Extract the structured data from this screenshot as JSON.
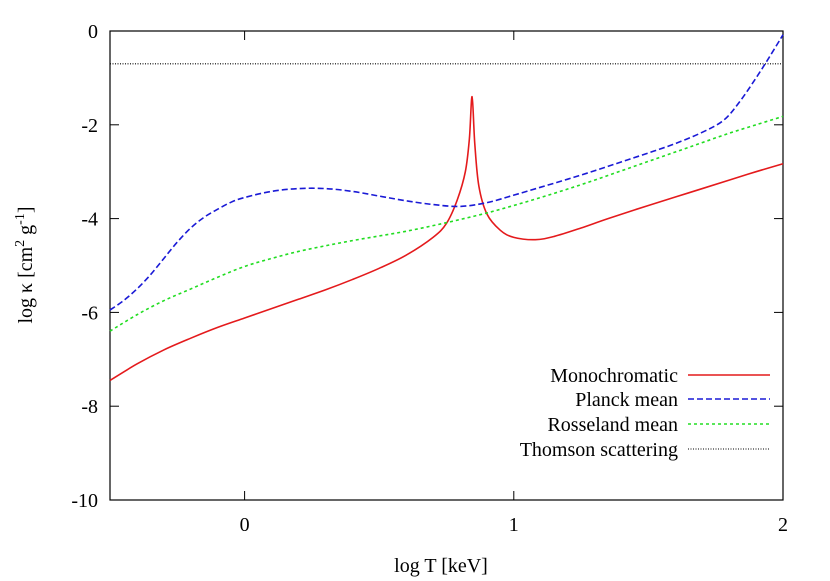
{
  "chart_data": {
    "type": "line",
    "xlabel": "log T [keV]",
    "ylabel": {
      "base": "log κ [cm",
      "sup1": "2",
      "mid": " g",
      "sup2": "-1",
      "end": "]"
    },
    "xlim": [
      -0.5,
      2
    ],
    "ylim": [
      -10,
      0
    ],
    "xticks": [
      0,
      1,
      2
    ],
    "yticks": [
      0,
      -2,
      -4,
      -6,
      -8,
      -10
    ],
    "xtick_labels": [
      "0",
      "1",
      "2"
    ],
    "ytick_labels": [
      "0",
      "-2",
      "-4",
      "-6",
      "-8",
      "-10"
    ],
    "grid": false,
    "legend_position": "bottom-right",
    "series": [
      {
        "name": "Monochromatic",
        "color": "#e41a1c",
        "dash": "solid",
        "points": [
          [
            -0.5,
            -7.45
          ],
          [
            -0.4,
            -7.1
          ],
          [
            -0.3,
            -6.8
          ],
          [
            -0.2,
            -6.55
          ],
          [
            -0.1,
            -6.32
          ],
          [
            0,
            -6.12
          ],
          [
            0.1,
            -5.92
          ],
          [
            0.2,
            -5.72
          ],
          [
            0.3,
            -5.52
          ],
          [
            0.4,
            -5.3
          ],
          [
            0.5,
            -5.06
          ],
          [
            0.6,
            -4.78
          ],
          [
            0.7,
            -4.4
          ],
          [
            0.75,
            -4.1
          ],
          [
            0.79,
            -3.6
          ],
          [
            0.82,
            -3.0
          ],
          [
            0.835,
            -2.3
          ],
          [
            0.845,
            -1.4
          ],
          [
            0.855,
            -2.4
          ],
          [
            0.87,
            -3.3
          ],
          [
            0.9,
            -3.9
          ],
          [
            0.95,
            -4.25
          ],
          [
            1.0,
            -4.4
          ],
          [
            1.08,
            -4.45
          ],
          [
            1.15,
            -4.38
          ],
          [
            1.25,
            -4.2
          ],
          [
            1.35,
            -4.0
          ],
          [
            1.5,
            -3.72
          ],
          [
            1.65,
            -3.45
          ],
          [
            1.8,
            -3.18
          ],
          [
            1.9,
            -3.0
          ],
          [
            2.0,
            -2.83
          ]
        ]
      },
      {
        "name": "Planck mean",
        "color": "#1a1ad6",
        "dash": "dashed",
        "points": [
          [
            -0.5,
            -5.95
          ],
          [
            -0.45,
            -5.75
          ],
          [
            -0.4,
            -5.5
          ],
          [
            -0.35,
            -5.2
          ],
          [
            -0.3,
            -4.85
          ],
          [
            -0.25,
            -4.5
          ],
          [
            -0.2,
            -4.2
          ],
          [
            -0.15,
            -3.97
          ],
          [
            -0.1,
            -3.8
          ],
          [
            -0.05,
            -3.65
          ],
          [
            0,
            -3.55
          ],
          [
            0.1,
            -3.42
          ],
          [
            0.2,
            -3.36
          ],
          [
            0.3,
            -3.36
          ],
          [
            0.4,
            -3.42
          ],
          [
            0.5,
            -3.52
          ],
          [
            0.6,
            -3.62
          ],
          [
            0.7,
            -3.7
          ],
          [
            0.8,
            -3.74
          ],
          [
            0.9,
            -3.66
          ],
          [
            1.0,
            -3.5
          ],
          [
            1.1,
            -3.33
          ],
          [
            1.2,
            -3.16
          ],
          [
            1.3,
            -2.98
          ],
          [
            1.4,
            -2.79
          ],
          [
            1.5,
            -2.6
          ],
          [
            1.6,
            -2.4
          ],
          [
            1.7,
            -2.16
          ],
          [
            1.78,
            -1.9
          ],
          [
            1.84,
            -1.5
          ],
          [
            1.9,
            -1.0
          ],
          [
            1.95,
            -0.55
          ],
          [
            2.0,
            -0.08
          ]
        ]
      },
      {
        "name": "Rosseland mean",
        "color": "#22dd22",
        "dash": "dotted",
        "points": [
          [
            -0.5,
            -6.4
          ],
          [
            -0.4,
            -6.05
          ],
          [
            -0.3,
            -5.75
          ],
          [
            -0.2,
            -5.5
          ],
          [
            -0.1,
            -5.25
          ],
          [
            0,
            -5.02
          ],
          [
            0.1,
            -4.85
          ],
          [
            0.2,
            -4.7
          ],
          [
            0.3,
            -4.58
          ],
          [
            0.4,
            -4.47
          ],
          [
            0.5,
            -4.37
          ],
          [
            0.6,
            -4.27
          ],
          [
            0.7,
            -4.15
          ],
          [
            0.8,
            -4.02
          ],
          [
            0.9,
            -3.88
          ],
          [
            1.0,
            -3.72
          ],
          [
            1.1,
            -3.55
          ],
          [
            1.2,
            -3.37
          ],
          [
            1.3,
            -3.18
          ],
          [
            1.4,
            -2.98
          ],
          [
            1.5,
            -2.78
          ],
          [
            1.6,
            -2.58
          ],
          [
            1.7,
            -2.38
          ],
          [
            1.8,
            -2.18
          ],
          [
            1.9,
            -2.0
          ],
          [
            2.0,
            -1.82
          ]
        ]
      },
      {
        "name": "Thomson scattering",
        "color": "#000000",
        "dash": "finedot",
        "points": [
          [
            -0.5,
            -0.7
          ],
          [
            2.0,
            -0.7
          ]
        ]
      }
    ]
  }
}
